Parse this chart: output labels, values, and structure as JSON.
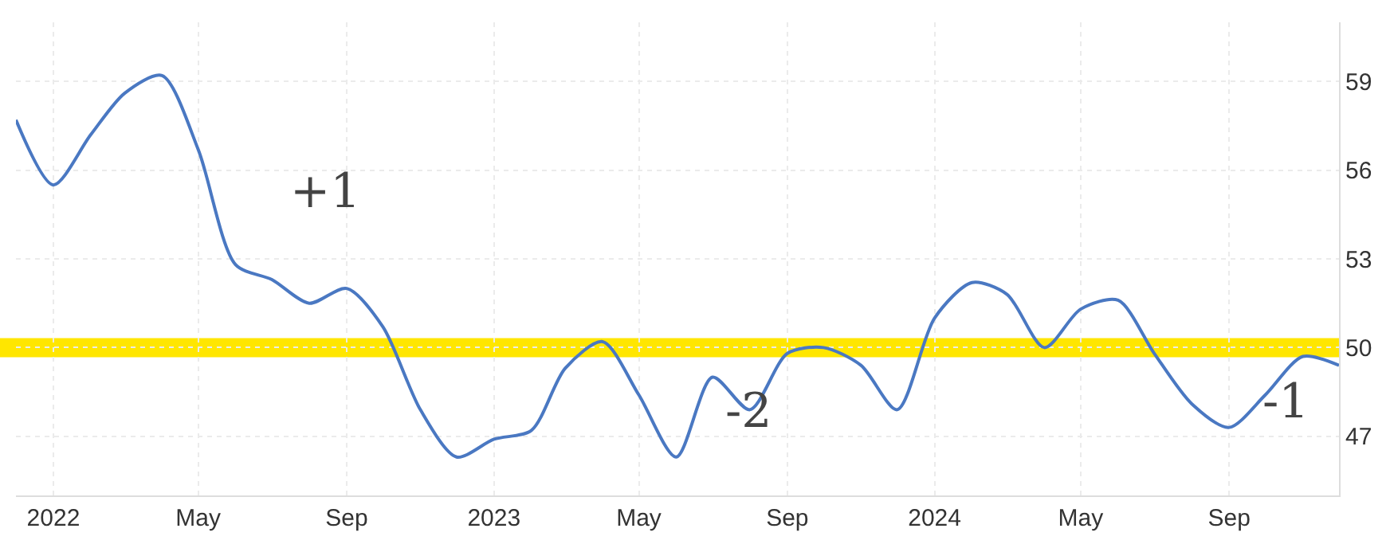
{
  "chart_data": {
    "type": "line",
    "x": [
      "2021-12",
      "2022-01",
      "2022-02",
      "2022-03",
      "2022-04",
      "2022-05",
      "2022-06",
      "2022-07",
      "2022-08",
      "2022-09",
      "2022-10",
      "2022-11",
      "2022-12",
      "2023-01",
      "2023-02",
      "2023-03",
      "2023-04",
      "2023-05",
      "2023-06",
      "2023-07",
      "2023-08",
      "2023-09",
      "2023-10",
      "2023-11",
      "2023-12",
      "2024-01",
      "2024-02",
      "2024-03",
      "2024-04",
      "2024-05",
      "2024-06",
      "2024-07",
      "2024-08",
      "2024-09",
      "2024-10",
      "2024-11",
      "2024-12"
    ],
    "series": [
      {
        "color": "#4a78c2",
        "values": [
          57.7,
          55.5,
          57.2,
          58.6,
          59.2,
          56.7,
          52.8,
          52.3,
          51.5,
          52.0,
          50.7,
          47.9,
          46.3,
          46.9,
          47.2,
          49.3,
          50.2,
          48.4,
          46.3,
          49.0,
          47.9,
          49.8,
          50.0,
          49.4,
          47.9,
          51.0,
          52.2,
          51.8,
          50.0,
          51.3,
          51.6,
          49.8,
          48.1,
          47.3,
          48.4,
          49.7,
          49.4
        ]
      }
    ],
    "xlim": [
      "2021-12",
      "2024-12"
    ],
    "xticks": [
      {
        "value": "2022-01",
        "label": "2022"
      },
      {
        "value": "2022-05",
        "label": "May"
      },
      {
        "value": "2022-09",
        "label": "Sep"
      },
      {
        "value": "2023-01",
        "label": "2023"
      },
      {
        "value": "2023-05",
        "label": "May"
      },
      {
        "value": "2023-09",
        "label": "Sep"
      },
      {
        "value": "2024-01",
        "label": "2024"
      },
      {
        "value": "2024-05",
        "label": "May"
      },
      {
        "value": "2024-09",
        "label": "Sep"
      }
    ],
    "ylim": [
      45,
      61
    ],
    "yticks": [
      47,
      50,
      53,
      56,
      59
    ],
    "ref_lines": [
      {
        "axis": "y",
        "value": 50,
        "color": "#ffe600"
      }
    ],
    "annotations": [
      "+1",
      "-2",
      "-1"
    ],
    "grid": true,
    "legend": false,
    "marker": "none",
    "line_style": "solid"
  }
}
